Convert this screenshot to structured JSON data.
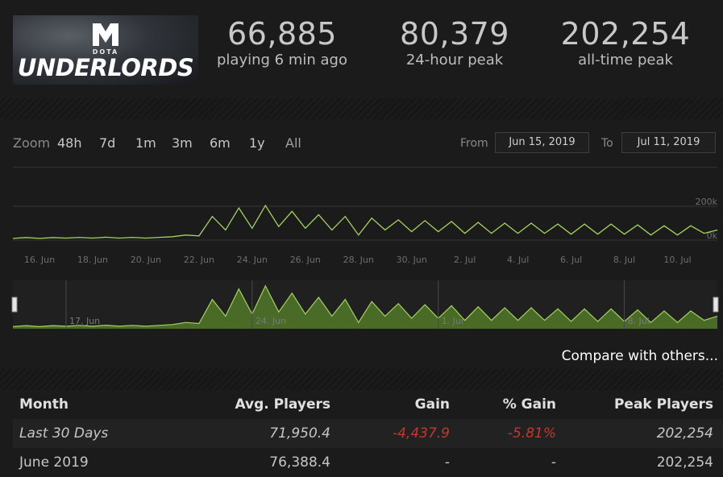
{
  "game": {
    "logo_small": "DOTA",
    "logo_big": "UNDERLORDS"
  },
  "stats": [
    {
      "value": "66,885",
      "label": "playing 6 min ago"
    },
    {
      "value": "80,379",
      "label": "24-hour peak"
    },
    {
      "value": "202,254",
      "label": "all-time peak"
    }
  ],
  "zoom": {
    "label": "Zoom",
    "options": [
      "48h",
      "7d",
      "1m",
      "3m",
      "6m",
      "1y",
      "All"
    ]
  },
  "range": {
    "from_label": "From",
    "from_value": "Jun 15, 2019",
    "to_label": "To",
    "to_value": "Jul 11, 2019"
  },
  "chart_data": {
    "type": "line",
    "x_tick_labels": [
      "16. Jun",
      "18. Jun",
      "20. Jun",
      "22. Jun",
      "24. Jun",
      "26. Jun",
      "28. Jun",
      "30. Jun",
      "2. Jul",
      "4. Jul",
      "6. Jul",
      "8. Jul",
      "10. Jul"
    ],
    "y_tick_labels": [
      "0k",
      "200k"
    ],
    "ylim": [
      0,
      200000
    ],
    "navigator_labels": [
      "17. Jun",
      "24. Jun",
      "1. Jul",
      "8. Jul"
    ],
    "colors": {
      "line": "#a4d35a",
      "fill": "#4a6a27",
      "grid": "#363636"
    },
    "series": [
      {
        "x": [
          "Jun 15 00h",
          "Jun 15 12h",
          "Jun 16 00h",
          "Jun 16 12h",
          "Jun 17 00h",
          "Jun 17 12h",
          "Jun 18 00h",
          "Jun 18 12h",
          "Jun 19 00h",
          "Jun 19 12h",
          "Jun 20 00h",
          "Jun 20 12h",
          "Jun 21 00h",
          "Jun 21 12h",
          "Jun 22 00h",
          "Jun 22 12h",
          "Jun 23 00h",
          "Jun 23 12h",
          "Jun 24 00h",
          "Jun 24 12h",
          "Jun 25 00h",
          "Jun 25 12h",
          "Jun 26 00h",
          "Jun 26 12h",
          "Jun 27 00h",
          "Jun 27 12h",
          "Jun 28 00h",
          "Jun 28 12h",
          "Jun 29 00h",
          "Jun 29 12h",
          "Jun 30 00h",
          "Jun 30 12h",
          "Jul 1 00h",
          "Jul 1 12h",
          "Jul 2 00h",
          "Jul 2 12h",
          "Jul 3 00h",
          "Jul 3 12h",
          "Jul 4 00h",
          "Jul 4 12h",
          "Jul 5 00h",
          "Jul 5 12h",
          "Jul 6 00h",
          "Jul 6 12h",
          "Jul 7 00h",
          "Jul 7 12h",
          "Jul 8 00h",
          "Jul 8 12h",
          "Jul 9 00h",
          "Jul 9 12h",
          "Jul 10 00h",
          "Jul 10 12h",
          "Jul 11 00h",
          "Jul 11 12h"
        ],
        "y": [
          10000,
          15000,
          10000,
          15000,
          12000,
          16000,
          12000,
          17000,
          12000,
          16000,
          12000,
          16000,
          20000,
          30000,
          25000,
          140000,
          60000,
          190000,
          70000,
          205000,
          80000,
          170000,
          70000,
          150000,
          60000,
          140000,
          30000,
          130000,
          60000,
          120000,
          50000,
          115000,
          50000,
          110000,
          40000,
          105000,
          40000,
          100000,
          40000,
          100000,
          40000,
          95000,
          35000,
          95000,
          35000,
          95000,
          35000,
          90000,
          30000,
          85000,
          30000,
          85000,
          40000,
          60000
        ]
      }
    ]
  },
  "compare_link": "Compare with others...",
  "table": {
    "headers": [
      "Month",
      "Avg. Players",
      "Gain",
      "% Gain",
      "Peak Players"
    ],
    "rows": [
      {
        "month": "Last 30 Days",
        "avg": "71,950.4",
        "gain": "-4,437.9",
        "pct": "-5.81%",
        "peak": "202,254"
      },
      {
        "month": "June 2019",
        "avg": "76,388.4",
        "gain": "-",
        "pct": "-",
        "peak": "202,254"
      }
    ]
  }
}
